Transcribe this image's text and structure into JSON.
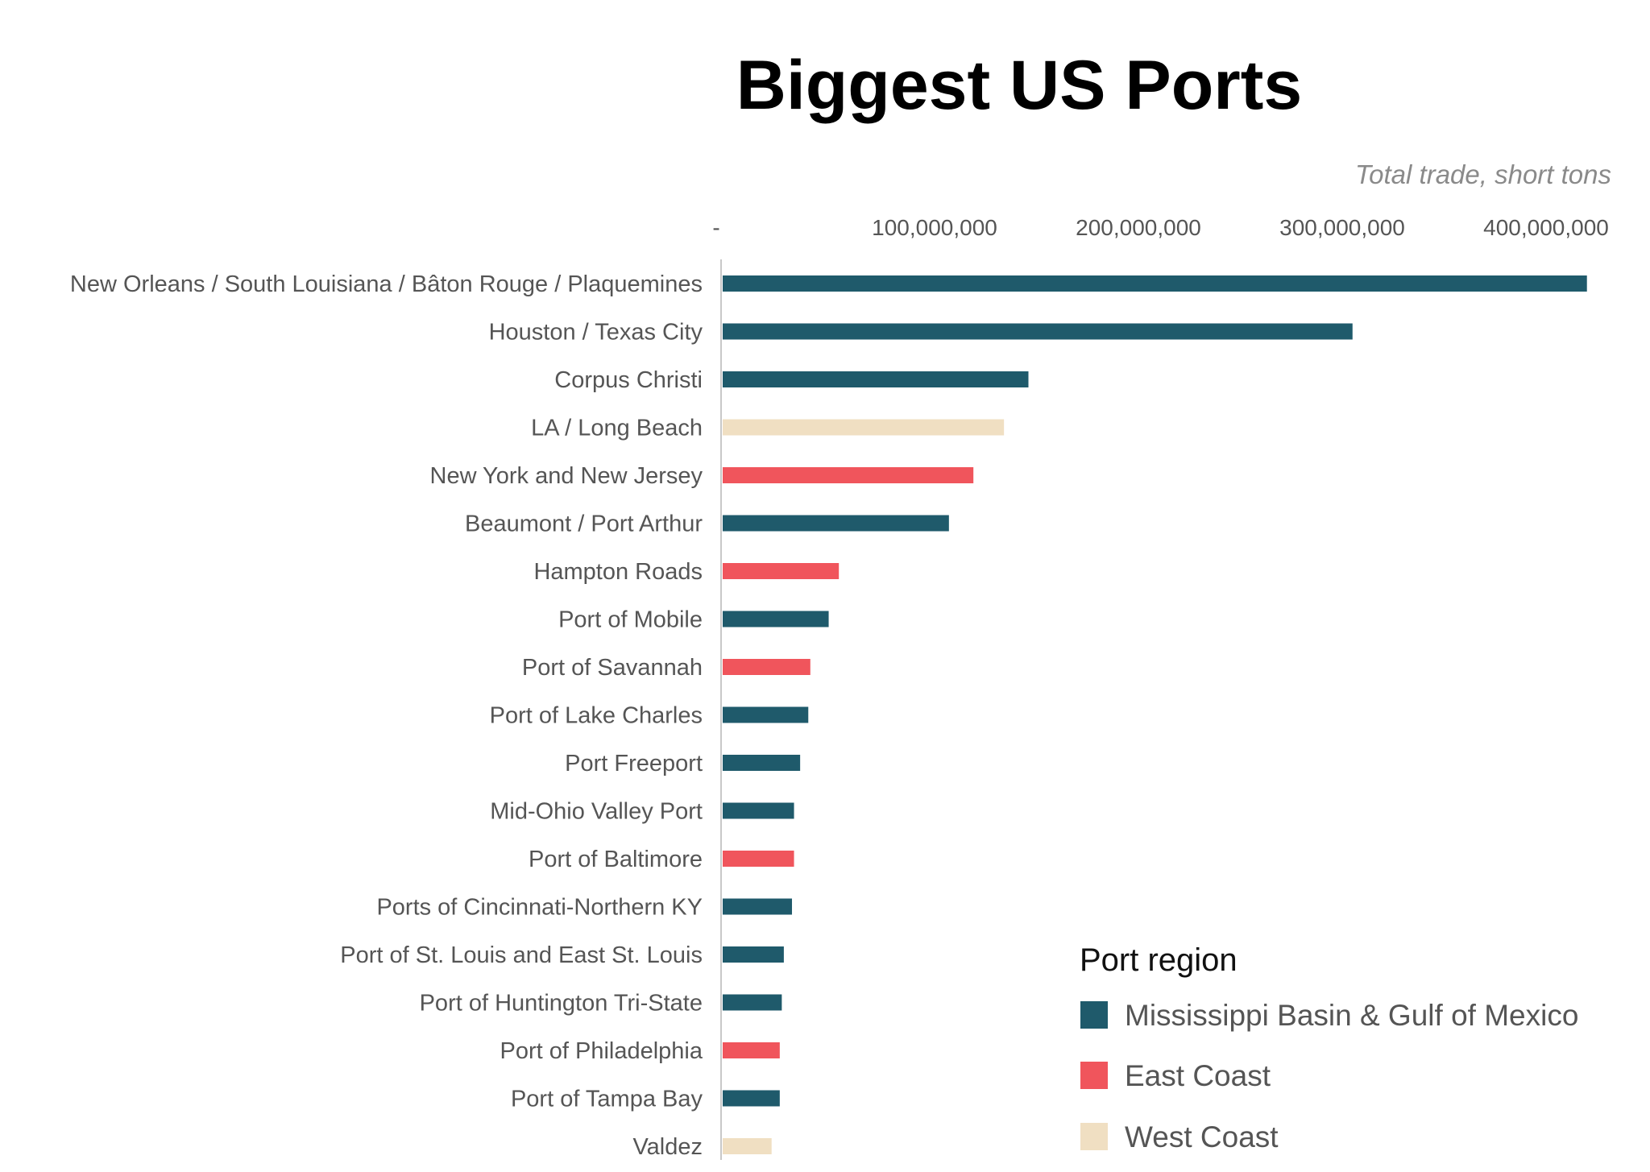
{
  "colors": {
    "Mississippi Basin & Gulf of Mexico": "#1f5a6b",
    "East Coast": "#f0555c",
    "West Coast": "#f0dfc2",
    "axis_line": "#c8c8c8"
  },
  "chart_data": {
    "type": "bar",
    "orientation": "horizontal",
    "title": "Biggest US Ports",
    "unit_label": "Total trade, short tons",
    "xlim": [
      0,
      450000000
    ],
    "xticks": [
      {
        "value": 0,
        "label": "-"
      },
      {
        "value": 100000000,
        "label": "100,000,000"
      },
      {
        "value": 200000000,
        "label": "200,000,000"
      },
      {
        "value": 300000000,
        "label": "300,000,000"
      },
      {
        "value": 400000000,
        "label": "400,000,000"
      }
    ],
    "grid": false,
    "legend_position": "bottom-right",
    "legend": {
      "title": "Port region",
      "items": [
        "Mississippi Basin & Gulf of Mexico",
        "East Coast",
        "West Coast"
      ]
    },
    "categories": [
      "New Orleans / South Louisiana / Bâton Rouge / Plaquemines",
      "Houston / Texas City",
      "Corpus Christi",
      "LA / Long Beach",
      "New York and New Jersey",
      "Beaumont / Port Arthur",
      "Hampton Roads",
      "Port of Mobile",
      "Port of Savannah",
      "Port of Lake Charles",
      "Port Freeport",
      "Mid-Ohio Valley Port",
      "Port of Baltimore",
      "Ports of Cincinnati-Northern KY",
      "Port of St. Louis and East St. Louis",
      "Port of Huntington Tri-State",
      "Port of Philadelphia",
      "Port of Tampa Bay",
      "Valdez"
    ],
    "values": [
      424000000,
      309000000,
      150000000,
      138000000,
      123000000,
      111000000,
      57000000,
      52000000,
      43000000,
      42000000,
      38000000,
      35000000,
      35000000,
      34000000,
      30000000,
      29000000,
      28000000,
      28000000,
      24000000
    ],
    "regions": [
      "Mississippi Basin & Gulf of Mexico",
      "Mississippi Basin & Gulf of Mexico",
      "Mississippi Basin & Gulf of Mexico",
      "West Coast",
      "East Coast",
      "Mississippi Basin & Gulf of Mexico",
      "East Coast",
      "Mississippi Basin & Gulf of Mexico",
      "East Coast",
      "Mississippi Basin & Gulf of Mexico",
      "Mississippi Basin & Gulf of Mexico",
      "Mississippi Basin & Gulf of Mexico",
      "East Coast",
      "Mississippi Basin & Gulf of Mexico",
      "Mississippi Basin & Gulf of Mexico",
      "Mississippi Basin & Gulf of Mexico",
      "East Coast",
      "Mississippi Basin & Gulf of Mexico",
      "West Coast"
    ]
  }
}
